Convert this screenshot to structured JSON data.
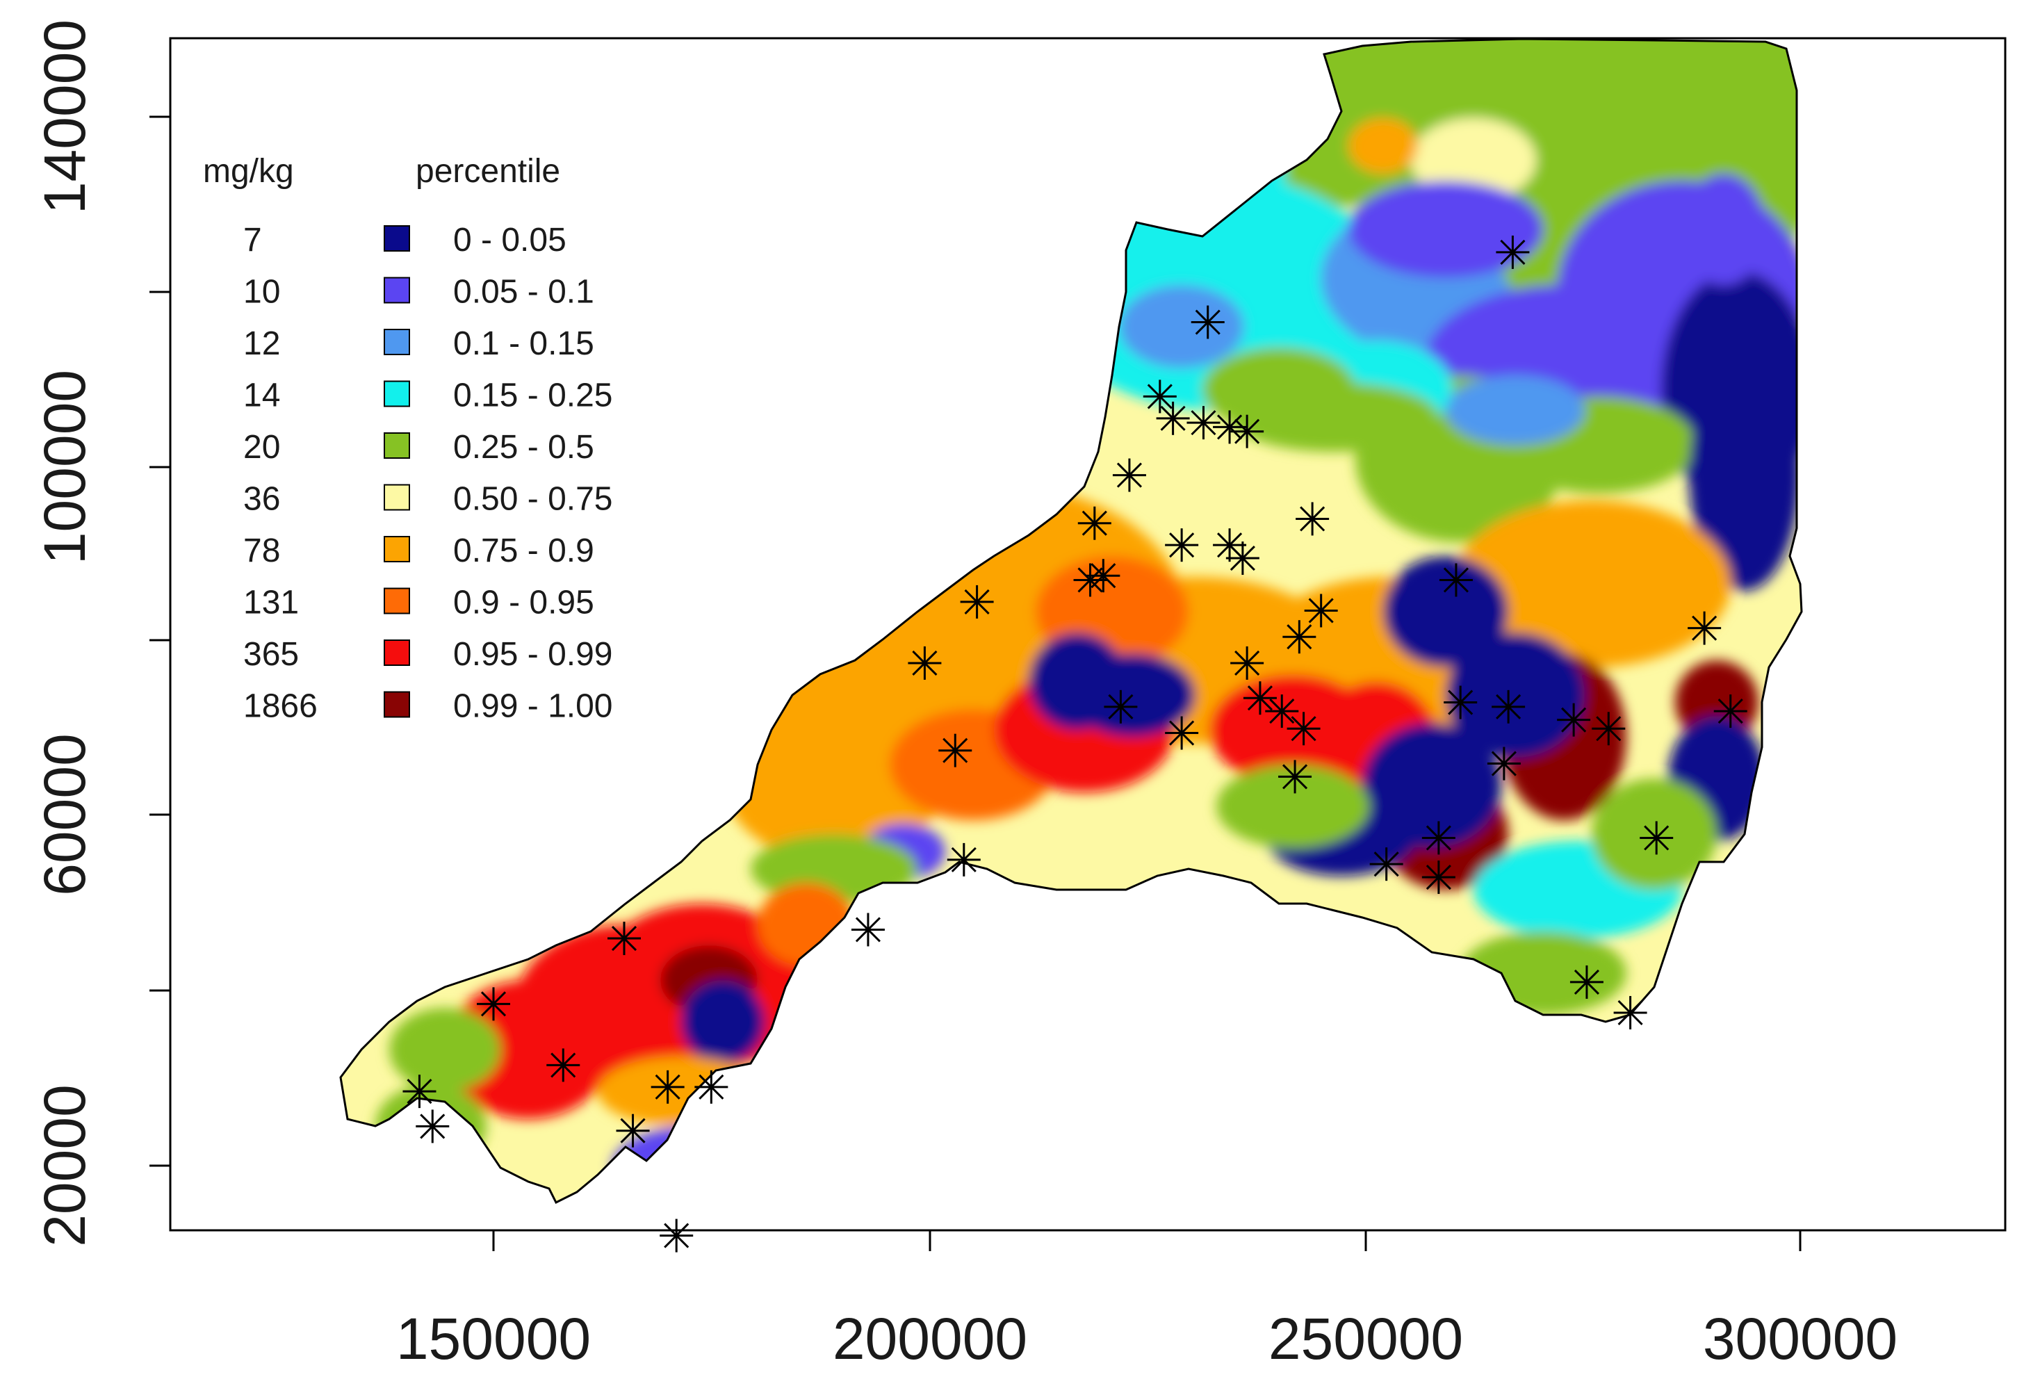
{
  "map": {
    "x_axis": {
      "ticks": [
        "150000",
        "200000",
        "250000",
        "300000"
      ],
      "range": [
        112000,
        320000
      ]
    },
    "y_axis": {
      "ticks": [
        "20000",
        "60000",
        "100000",
        "140000"
      ],
      "range": [
        5000,
        147000
      ]
    }
  },
  "legend": {
    "unit_header": "mg/kg",
    "percentile_header": "percentile",
    "items": [
      {
        "value": "7",
        "range": "0 - 0.05",
        "color": "#0a0a8c"
      },
      {
        "value": "10",
        "range": "0.05 - 0.1",
        "color": "#5b45f2"
      },
      {
        "value": "12",
        "range": "0.1 - 0.15",
        "color": "#4f98f0"
      },
      {
        "value": "14",
        "range": "0.15 - 0.25",
        "color": "#12f0ec"
      },
      {
        "value": "20",
        "range": "0.25 - 0.5",
        "color": "#86c224"
      },
      {
        "value": "36",
        "range": "0.50 - 0.75",
        "color": "#fdf9a4"
      },
      {
        "value": "78",
        "range": "0.75 - 0.9",
        "color": "#fca402"
      },
      {
        "value": "131",
        "range": "0.9 - 0.95",
        "color": "#fe6b06"
      },
      {
        "value": "365",
        "range": "0.95 - 0.99",
        "color": "#f50d0d"
      },
      {
        "value": "1866",
        "range": "0.99 - 1.00",
        "color": "#890404"
      }
    ]
  },
  "sample_points": [
    [
      267000,
      124500
    ],
    [
      232000,
      116500
    ],
    [
      226500,
      108000
    ],
    [
      228000,
      105500
    ],
    [
      231500,
      105000
    ],
    [
      234500,
      104500
    ],
    [
      236500,
      104000
    ],
    [
      223000,
      99000
    ],
    [
      219000,
      93500
    ],
    [
      229000,
      91000
    ],
    [
      234500,
      91000
    ],
    [
      236000,
      89500
    ],
    [
      218500,
      87000
    ],
    [
      220000,
      87500
    ],
    [
      244000,
      94000
    ],
    [
      260500,
      87000
    ],
    [
      205500,
      84500
    ],
    [
      199500,
      77500
    ],
    [
      203000,
      67500
    ],
    [
      222000,
      72500
    ],
    [
      229000,
      69500
    ],
    [
      236500,
      77500
    ],
    [
      238000,
      73500
    ],
    [
      240500,
      72000
    ],
    [
      243000,
      70000
    ],
    [
      242500,
      80500
    ],
    [
      245000,
      83500
    ],
    [
      242000,
      64500
    ],
    [
      261000,
      73000
    ],
    [
      266500,
      72500
    ],
    [
      266000,
      66000
    ],
    [
      274000,
      71000
    ],
    [
      278000,
      70000
    ],
    [
      289000,
      81500
    ],
    [
      292000,
      72000
    ],
    [
      283500,
      57500
    ],
    [
      258500,
      57500
    ],
    [
      252500,
      54500
    ],
    [
      258500,
      53000
    ],
    [
      204000,
      55000
    ],
    [
      193000,
      47000
    ],
    [
      165000,
      46000
    ],
    [
      150000,
      38500
    ],
    [
      158000,
      31500
    ],
    [
      141500,
      28500
    ],
    [
      143000,
      24500
    ],
    [
      170000,
      29000
    ],
    [
      175000,
      29000
    ],
    [
      166000,
      24000
    ],
    [
      171000,
      12000
    ],
    [
      275500,
      41000
    ],
    [
      280500,
      37500
    ]
  ]
}
